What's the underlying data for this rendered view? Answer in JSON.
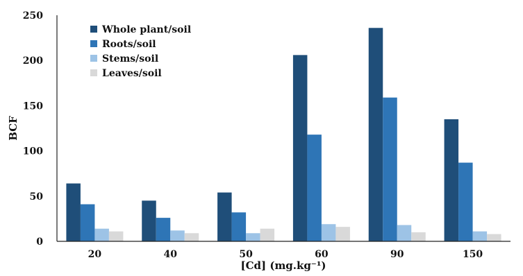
{
  "chart_data": {
    "type": "bar",
    "title": "",
    "xlabel": "[Cd] (mg.kg⁻¹)",
    "ylabel": "BCF",
    "ylim": [
      0,
      250
    ],
    "yticks": [
      "0",
      "50",
      "100",
      "150",
      "200",
      "250"
    ],
    "categories": [
      "20",
      "40",
      "50",
      "60",
      "90",
      "150"
    ],
    "grid": false,
    "legend_position": "top-left",
    "series": [
      {
        "name": "Whole plant/soil",
        "color": "#1f4e79",
        "values": [
          64,
          45,
          54,
          206,
          236,
          135
        ]
      },
      {
        "name": "Roots/soil",
        "color": "#2e75b6",
        "values": [
          41,
          26,
          32,
          118,
          159,
          87
        ]
      },
      {
        "name": "Stems/soil",
        "color": "#9dc3e6",
        "values": [
          14,
          12,
          9,
          19,
          18,
          11
        ]
      },
      {
        "name": "Leaves/soil",
        "color": "#d9d9d9",
        "values": [
          11,
          9,
          14,
          16,
          10,
          8
        ]
      }
    ]
  }
}
